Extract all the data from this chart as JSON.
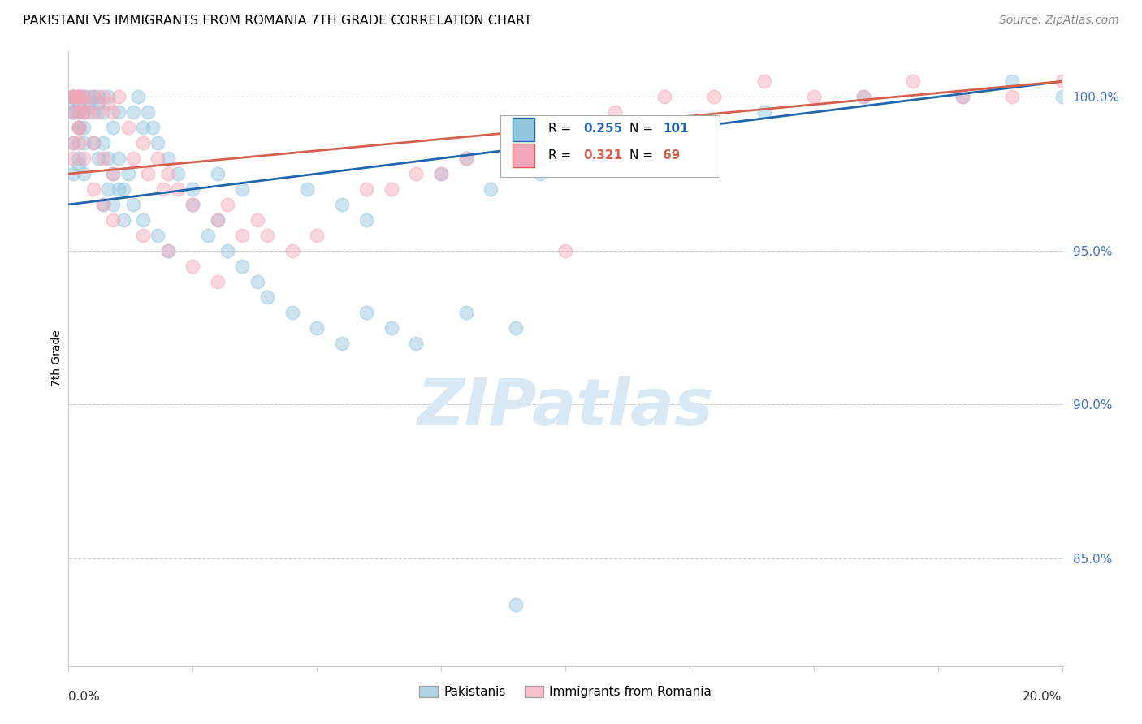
{
  "title": "PAKISTANI VS IMMIGRANTS FROM ROMANIA 7TH GRADE CORRELATION CHART",
  "source": "Source: ZipAtlas.com",
  "ylabel": "7th Grade",
  "x_min": 0.0,
  "x_max": 0.2,
  "y_min": 81.5,
  "y_max": 101.5,
  "R_pakistani": 0.255,
  "N_pakistani": 101,
  "R_romania": 0.321,
  "N_romania": 69,
  "legend_pakistani": "Pakistanis",
  "legend_romania": "Immigrants from Romania",
  "color_pakistani": "#92c5de",
  "color_romania": "#f4a6b8",
  "line_color_pakistani": "#2166ac",
  "line_color_romania": "#d6604d",
  "watermark_color": "#d8e8f5",
  "ytick_color": "#4472c4",
  "grid_color": "#cccccc",
  "background": "#ffffff"
}
